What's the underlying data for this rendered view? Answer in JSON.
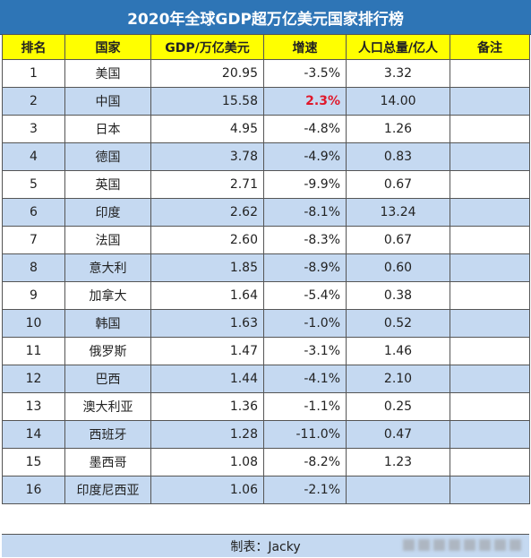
{
  "title": "2020年全球GDP超万亿美元国家排行榜",
  "headers": [
    "排名",
    "国家",
    "GDP/万亿美元",
    "增速",
    "人口总量/亿人",
    "备注"
  ],
  "rows": [
    {
      "rank": "1",
      "country": "美国",
      "gdp": "20.95",
      "growth": "-3.5%",
      "population": "3.32",
      "note": ""
    },
    {
      "rank": "2",
      "country": "中国",
      "gdp": "15.58",
      "growth": "2.3%",
      "population": "14.00",
      "note": ""
    },
    {
      "rank": "3",
      "country": "日本",
      "gdp": "4.95",
      "growth": "-4.8%",
      "population": "1.26",
      "note": ""
    },
    {
      "rank": "4",
      "country": "德国",
      "gdp": "3.78",
      "growth": "-4.9%",
      "population": "0.83",
      "note": ""
    },
    {
      "rank": "5",
      "country": "英国",
      "gdp": "2.71",
      "growth": "-9.9%",
      "population": "0.67",
      "note": ""
    },
    {
      "rank": "6",
      "country": "印度",
      "gdp": "2.62",
      "growth": "-8.1%",
      "population": "13.24",
      "note": ""
    },
    {
      "rank": "7",
      "country": "法国",
      "gdp": "2.60",
      "growth": "-8.3%",
      "population": "0.67",
      "note": ""
    },
    {
      "rank": "8",
      "country": "意大利",
      "gdp": "1.85",
      "growth": "-8.9%",
      "population": "0.60",
      "note": ""
    },
    {
      "rank": "9",
      "country": "加拿大",
      "gdp": "1.64",
      "growth": "-5.4%",
      "population": "0.38",
      "note": ""
    },
    {
      "rank": "10",
      "country": "韩国",
      "gdp": "1.63",
      "growth": "-1.0%",
      "population": "0.52",
      "note": ""
    },
    {
      "rank": "11",
      "country": "俄罗斯",
      "gdp": "1.47",
      "growth": "-3.1%",
      "population": "1.46",
      "note": ""
    },
    {
      "rank": "12",
      "country": "巴西",
      "gdp": "1.44",
      "growth": "-4.1%",
      "population": "2.10",
      "note": ""
    },
    {
      "rank": "13",
      "country": "澳大利亚",
      "gdp": "1.36",
      "growth": "-1.1%",
      "population": "0.25",
      "note": ""
    },
    {
      "rank": "14",
      "country": "西班牙",
      "gdp": "1.28",
      "growth": "-11.0%",
      "population": "0.47",
      "note": ""
    },
    {
      "rank": "15",
      "country": "墨西哥",
      "gdp": "1.08",
      "growth": "-8.2%",
      "population": "1.23",
      "note": ""
    },
    {
      "rank": "16",
      "country": "印度尼西亚",
      "gdp": "1.06",
      "growth": "-2.1%",
      "population": "",
      "note": ""
    }
  ],
  "highlight_color": "#e0182b",
  "footer": "制表：Jacky"
}
